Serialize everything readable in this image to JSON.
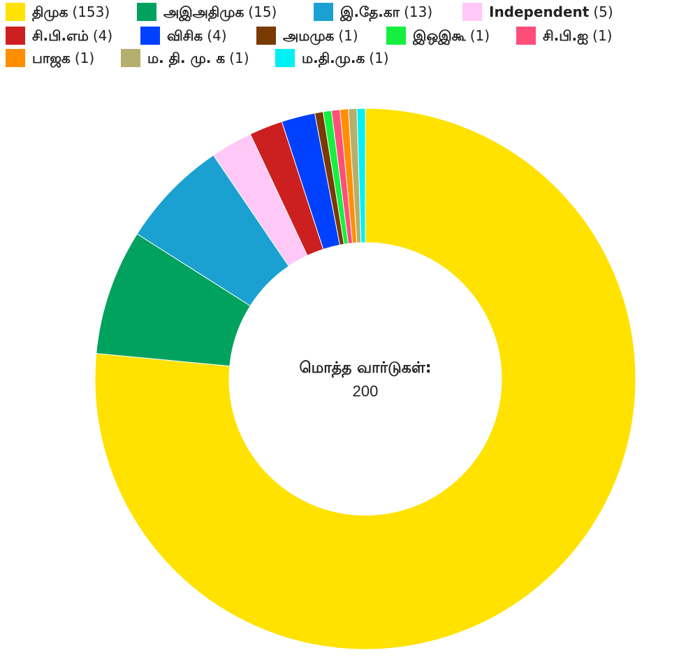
{
  "chart_data": {
    "type": "pie",
    "subtype": "donut",
    "center_label": "மொத்த வார்டுகள்:",
    "total": "200",
    "legend_placement": "top",
    "slices": [
      {
        "label": "திமுக",
        "value": 153,
        "count_text": "(153)",
        "color": "#FFE200"
      },
      {
        "label": "அஇஅதிமுக",
        "value": 15,
        "count_text": "(15)",
        "color": "#00A25D"
      },
      {
        "label": "இ.தே.கா",
        "value": 13,
        "count_text": "(13)",
        "color": "#1AA1D1"
      },
      {
        "label": "Independent",
        "value": 5,
        "count_text": "(5)",
        "color": "#FFC8F7"
      },
      {
        "label": "சி.பி.எம்",
        "value": 4,
        "count_text": "(4)",
        "color": "#CC1F1F"
      },
      {
        "label": "விசிக",
        "value": 4,
        "count_text": "(4)",
        "color": "#0040FF"
      },
      {
        "label": "அமமுக",
        "value": 1,
        "count_text": "(1)",
        "color": "#7A3A04"
      },
      {
        "label": "இஒஇகூ",
        "value": 1,
        "count_text": "(1)",
        "color": "#15F03F"
      },
      {
        "label": "சி.பி.ஐ",
        "value": 1,
        "count_text": "(1)",
        "color": "#FF4E7A"
      },
      {
        "label": "பாஜக",
        "value": 1,
        "count_text": "(1)",
        "color": "#FF8F00"
      },
      {
        "label": "ம. தி. மு. க",
        "value": 1,
        "count_text": "(1)",
        "color": "#B4AF6D"
      },
      {
        "label": "ம.தி.மு.க",
        "value": 1,
        "count_text": "(1)",
        "color": "#00F0F6"
      }
    ]
  }
}
